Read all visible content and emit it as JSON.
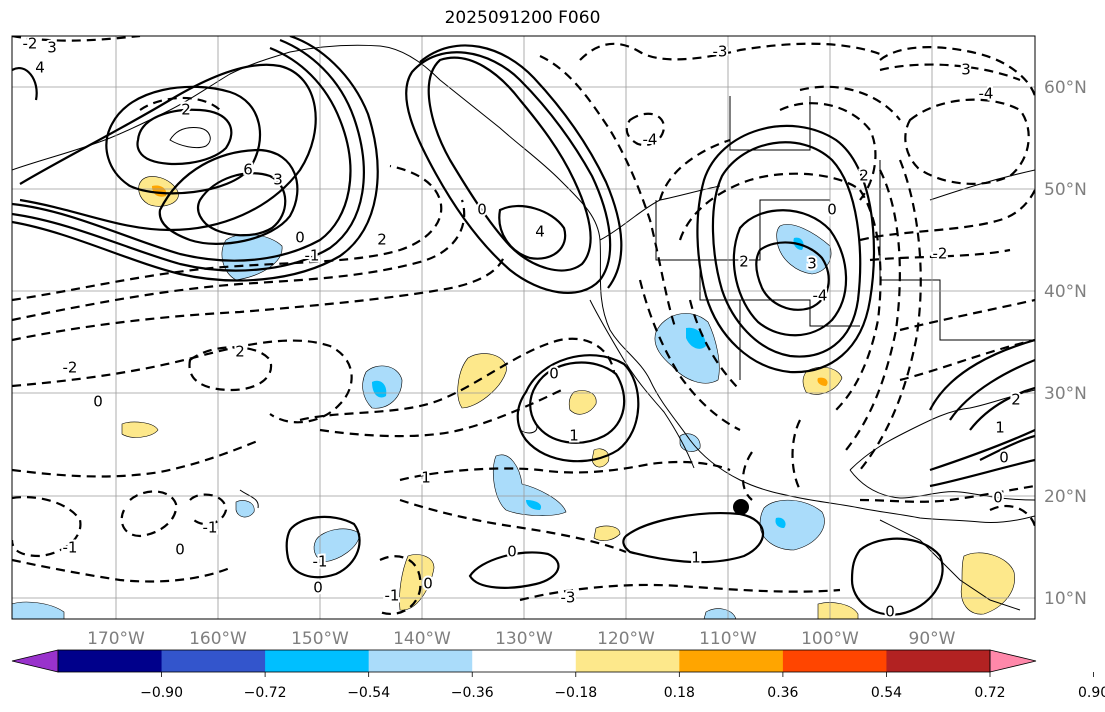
{
  "title": "2025091200 F060",
  "colors": {
    "neg_fill_light": "#aadcfa",
    "neg_fill_mid": "#00bfff",
    "pos_fill_light": "#fde88b",
    "pos_fill_mid": "#ffa500",
    "land_line": "#000000",
    "grid": "#9a9a9a"
  },
  "longitude_labels": [
    "170°W",
    "160°W",
    "150°W",
    "140°W",
    "130°W",
    "120°W",
    "110°W",
    "100°W",
    "90°W"
  ],
  "latitude_labels": [
    "60°N",
    "50°N",
    "40°N",
    "30°N",
    "20°N",
    "10°N"
  ],
  "contour_labels": [
    "3",
    "2",
    "4",
    "6",
    "3",
    "0",
    "-1",
    "2",
    "-2",
    "2",
    "0",
    "1",
    "4",
    "0",
    "1",
    "0",
    "-3",
    "3",
    "-4",
    "-4",
    "2",
    "0",
    "3",
    "2",
    "-2",
    "1",
    "-1",
    "-1",
    "0",
    "0",
    "0",
    "-3",
    "-1",
    "0",
    "1",
    "-1",
    "0",
    "0",
    "-2",
    "0",
    "-4",
    "2"
  ],
  "colorbar": {
    "colors": [
      "#9932cc",
      "#00008b",
      "#3355cc",
      "#00bfff",
      "#aadcfa",
      "#ffffff",
      "#fde88b",
      "#ffa500",
      "#ff4500",
      "#b22222",
      "#ff88aa"
    ],
    "tick_labels": [
      "−0.90",
      "−0.72",
      "−0.54",
      "−0.36",
      "−0.18",
      "0.18",
      "0.36",
      "0.54",
      "0.72",
      "0.90"
    ]
  },
  "marker": "storm-center-dot"
}
